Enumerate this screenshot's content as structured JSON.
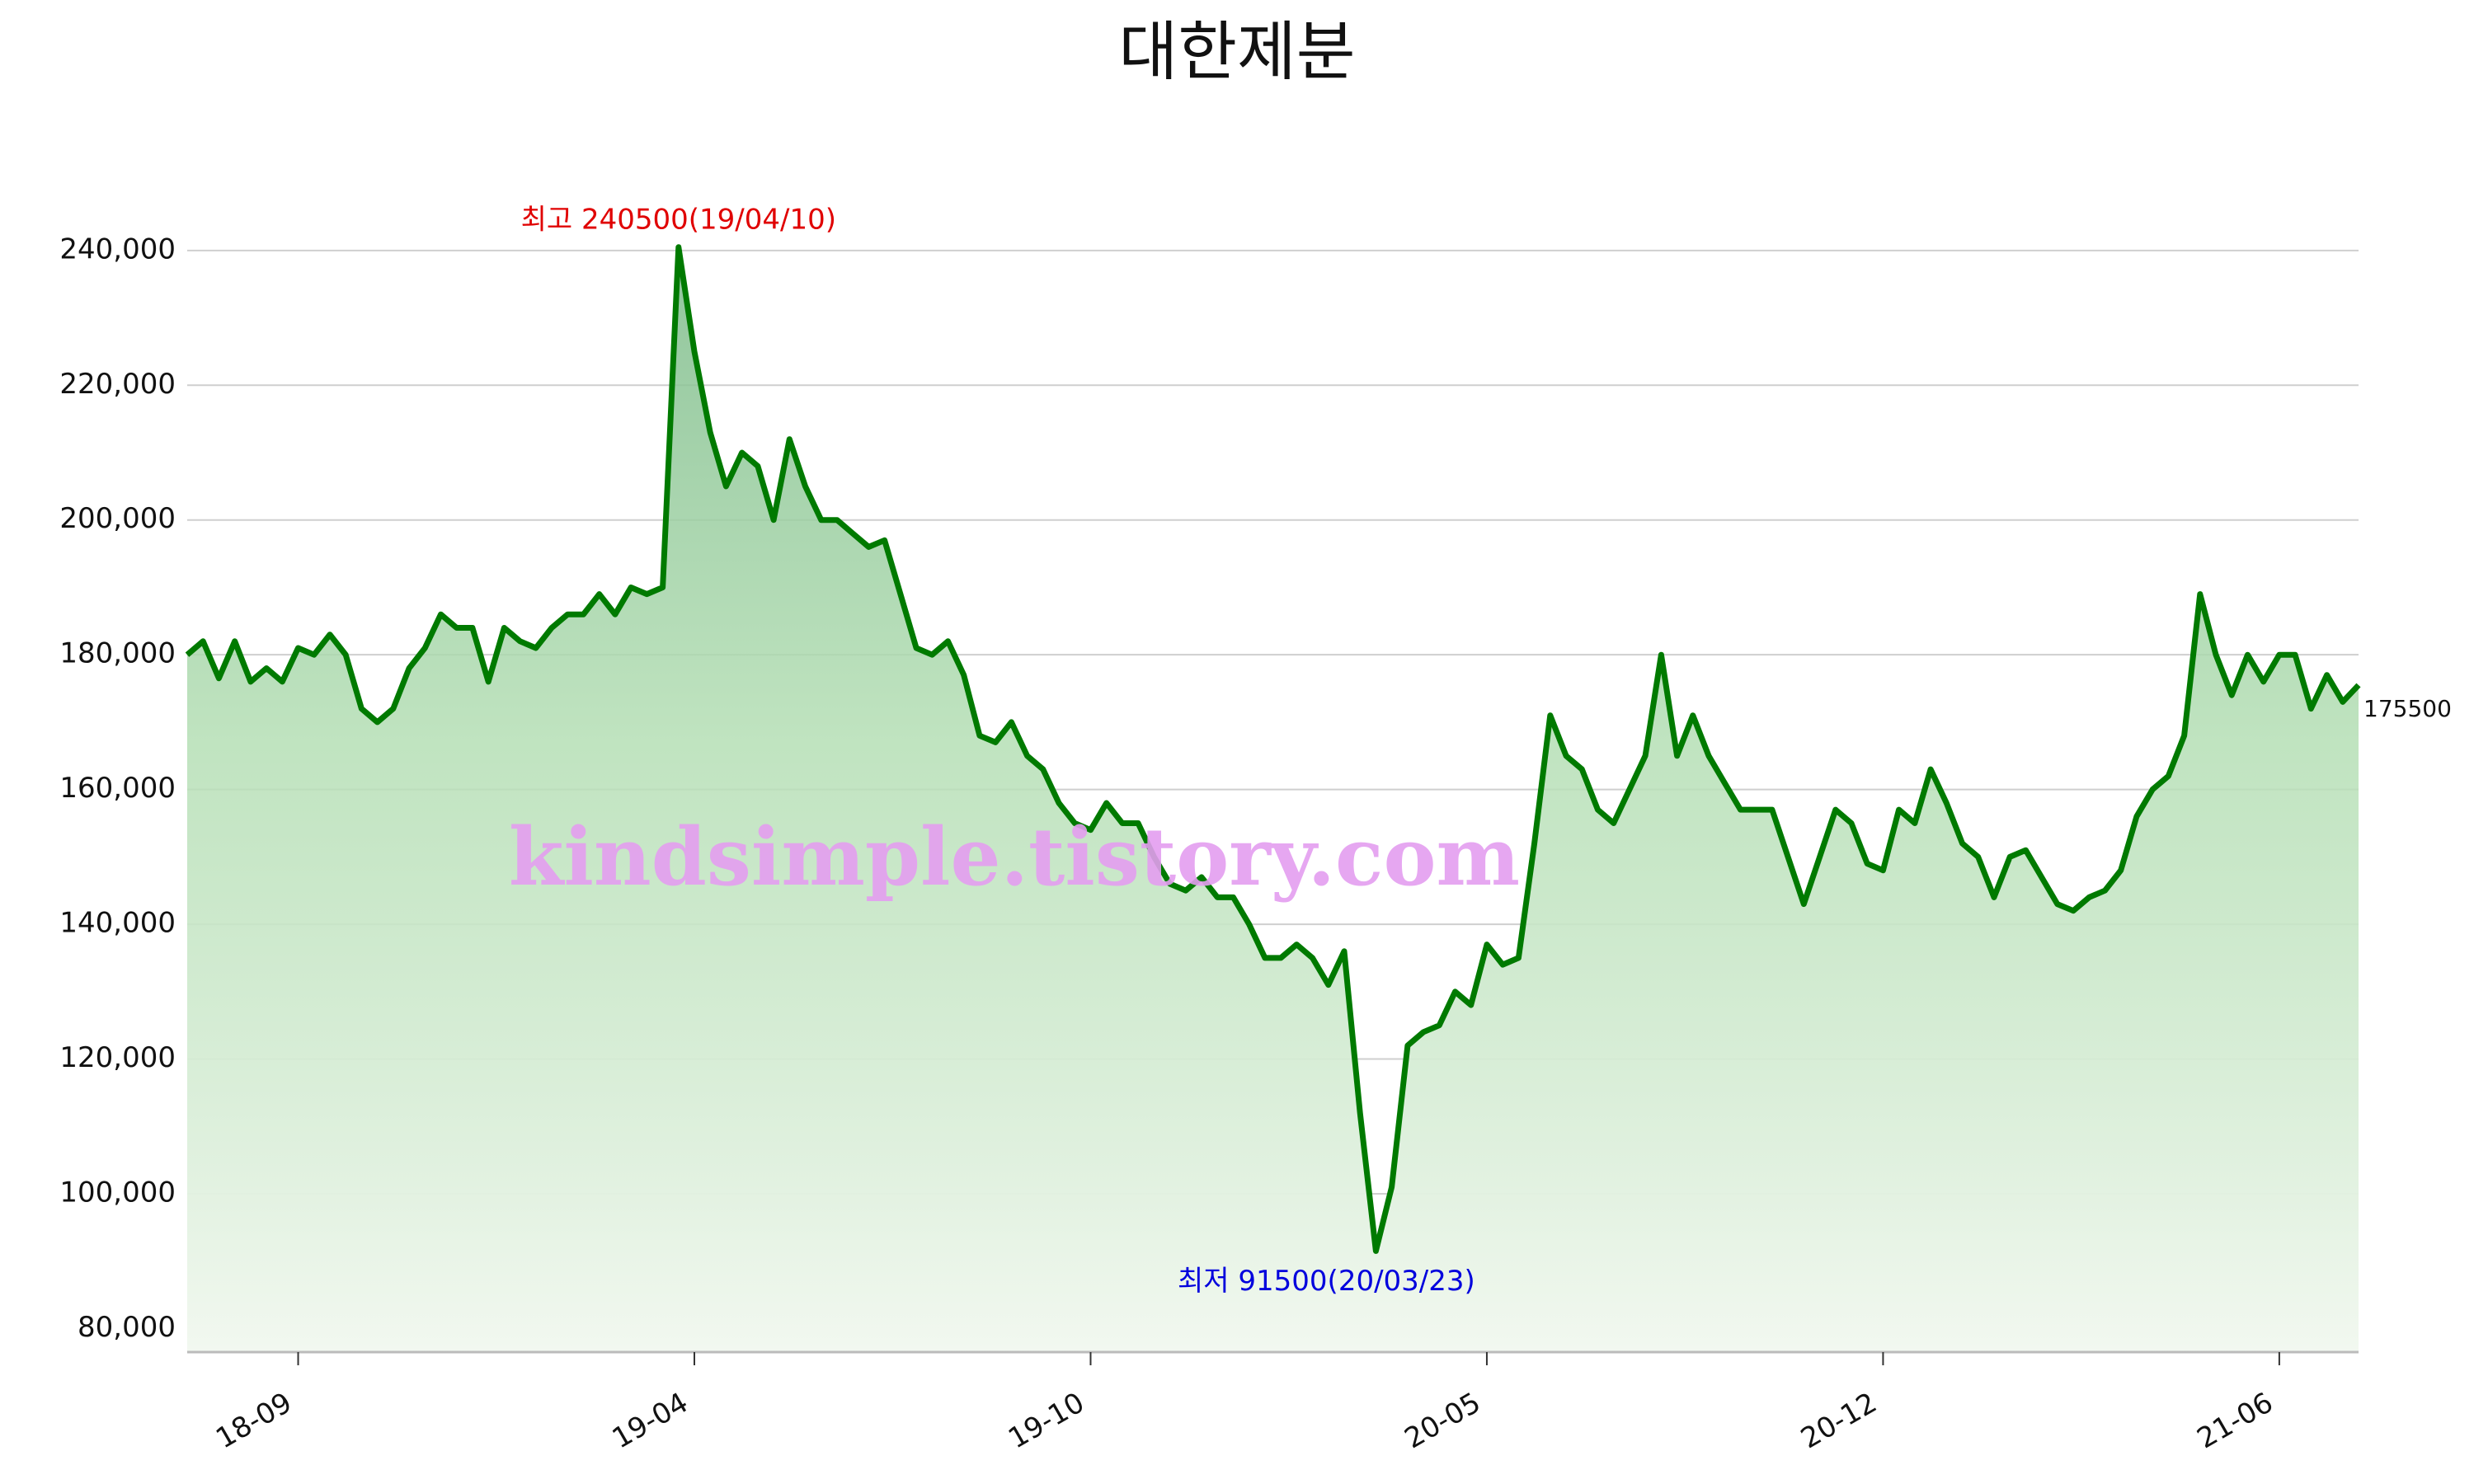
{
  "chart_data": {
    "type": "line",
    "title": "대한제분",
    "categories": [
      null,
      null,
      null,
      null,
      null,
      null,
      null,
      "18-09",
      null,
      null,
      null,
      null,
      null,
      null,
      null,
      null,
      null,
      null,
      null,
      null,
      null,
      null,
      null,
      null,
      null,
      null,
      null,
      null,
      null,
      null,
      null,
      null,
      "19-04",
      null,
      null,
      null,
      null,
      null,
      null,
      null,
      null,
      null,
      null,
      null,
      null,
      null,
      null,
      null,
      null,
      null,
      null,
      null,
      null,
      null,
      null,
      null,
      null,
      "19-10",
      null,
      null,
      null,
      null,
      null,
      null,
      null,
      null,
      null,
      null,
      null,
      null,
      null,
      null,
      null,
      null,
      null,
      null,
      null,
      null,
      null,
      null,
      null,
      null,
      "20-05",
      null,
      null,
      null,
      null,
      null,
      null,
      null,
      null,
      null,
      null,
      null,
      null,
      null,
      null,
      null,
      null,
      null,
      null,
      null,
      null,
      null,
      null,
      null,
      null,
      "20-12",
      null,
      null,
      null,
      null,
      null,
      null,
      null,
      null,
      null,
      null,
      null,
      null,
      null,
      null,
      null,
      null,
      null,
      null,
      null,
      null,
      null,
      null,
      null,
      null,
      "21-06",
      null,
      null,
      null,
      null,
      null
    ],
    "series": [
      {
        "name": "대한제분",
        "color": "#007a00",
        "values": [
          180000,
          182000,
          176500,
          182000,
          176000,
          178000,
          176000,
          181000,
          180000,
          183000,
          180000,
          172000,
          170000,
          172000,
          178000,
          181000,
          186000,
          184000,
          184000,
          176000,
          184000,
          182000,
          181000,
          184000,
          186000,
          186000,
          189000,
          186000,
          190000,
          189000,
          190000,
          240500,
          225000,
          213000,
          205000,
          210000,
          208000,
          200000,
          212000,
          205000,
          200000,
          200000,
          198000,
          196000,
          197000,
          189000,
          181000,
          180000,
          182000,
          177000,
          168000,
          167000,
          170000,
          165000,
          163000,
          158000,
          155000,
          154000,
          158000,
          155000,
          155000,
          150000,
          146000,
          145000,
          147000,
          144000,
          144000,
          140000,
          135000,
          135000,
          137000,
          135000,
          131000,
          136000,
          112000,
          91500,
          101000,
          122000,
          124000,
          125000,
          130000,
          128000,
          137000,
          134000,
          135000,
          152000,
          171000,
          165000,
          163000,
          157000,
          155000,
          160000,
          165000,
          180000,
          165000,
          171000,
          165000,
          161000,
          157000,
          157000,
          157000,
          150000,
          143000,
          150000,
          157000,
          155000,
          149000,
          148000,
          157000,
          155000,
          163000,
          158000,
          152000,
          150000,
          144000,
          150000,
          151000,
          147000,
          143000,
          142000,
          144000,
          145000,
          148000,
          156000,
          160000,
          162000,
          168000,
          189000,
          180000,
          174000,
          180000,
          176000,
          180000,
          180000,
          172000,
          177000,
          173000,
          175500
        ]
      }
    ],
    "ylim": [
      76500,
      245000
    ],
    "yticks": [
      {
        "value": 80000,
        "label": "80,000"
      },
      {
        "value": 100000,
        "label": "100,000"
      },
      {
        "value": 120000,
        "label": "120,000"
      },
      {
        "value": 140000,
        "label": "140,000"
      },
      {
        "value": 160000,
        "label": "160,000"
      },
      {
        "value": 180000,
        "label": "180,000"
      },
      {
        "value": 200000,
        "label": "200,000"
      },
      {
        "value": 220000,
        "label": "220,000"
      },
      {
        "value": 240000,
        "label": "240,000"
      }
    ],
    "grid": true,
    "annotations": {
      "high": "최고 240500(19/04/10)",
      "low": "최저 91500(20/03/23)",
      "watermark": "kindsimple.tistory.com"
    }
  }
}
